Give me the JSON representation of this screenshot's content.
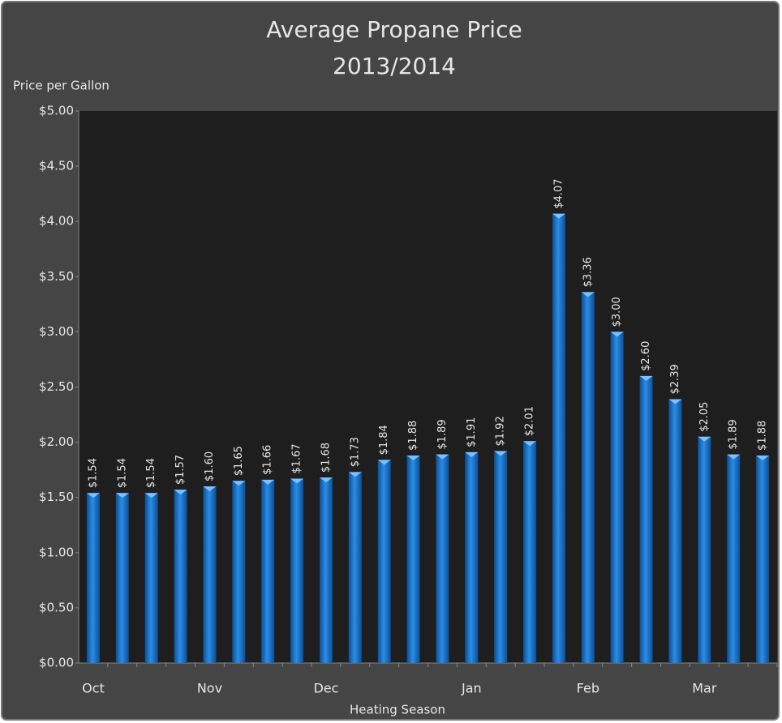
{
  "chart_data": {
    "type": "bar",
    "title": "Average Propane Price",
    "subtitle": "2013/2014",
    "y_label": "Price per Gallon",
    "x_label": "Heating Season",
    "categories": [
      "Oct",
      null,
      null,
      null,
      "Nov",
      null,
      null,
      null,
      "Dec",
      null,
      null,
      null,
      null,
      "Jan",
      null,
      null,
      null,
      "Feb",
      null,
      null,
      null,
      "Mar",
      null,
      null
    ],
    "values": [
      1.54,
      1.54,
      1.54,
      1.57,
      1.6,
      1.65,
      1.66,
      1.67,
      1.68,
      1.73,
      1.84,
      1.88,
      1.89,
      1.91,
      1.92,
      2.01,
      4.07,
      3.36,
      3.0,
      2.6,
      2.39,
      2.05,
      1.89,
      1.88
    ],
    "value_labels": [
      "$1.54",
      "$1.54",
      "$1.54",
      "$1.57",
      "$1.60",
      "$1.65",
      "$1.66",
      "$1.67",
      "$1.68",
      "$1.73",
      "$1.84",
      "$1.88",
      "$1.89",
      "$1.91",
      "$1.92",
      "$2.01",
      "$4.07",
      "$3.36",
      "$3.00",
      "$2.60",
      "$2.39",
      "$2.05",
      "$1.89",
      "$1.88"
    ],
    "color": "#1f7fd6",
    "ylim": [
      0,
      5
    ],
    "yticks": [
      {
        "value": 0,
        "label": "$0.00"
      },
      {
        "value": 0.5,
        "label": "$0.50"
      },
      {
        "value": 1,
        "label": "$1.00"
      },
      {
        "value": 1.5,
        "label": "$1.50"
      },
      {
        "value": 2,
        "label": "$2.00"
      },
      {
        "value": 2.5,
        "label": "$2.50"
      },
      {
        "value": 3,
        "label": "$3.00"
      },
      {
        "value": 3.5,
        "label": "$3.50"
      },
      {
        "value": 4,
        "label": "$4.00"
      },
      {
        "value": 4.5,
        "label": "$4.50"
      },
      {
        "value": 5,
        "label": "$5.00"
      }
    ],
    "grid": false
  }
}
